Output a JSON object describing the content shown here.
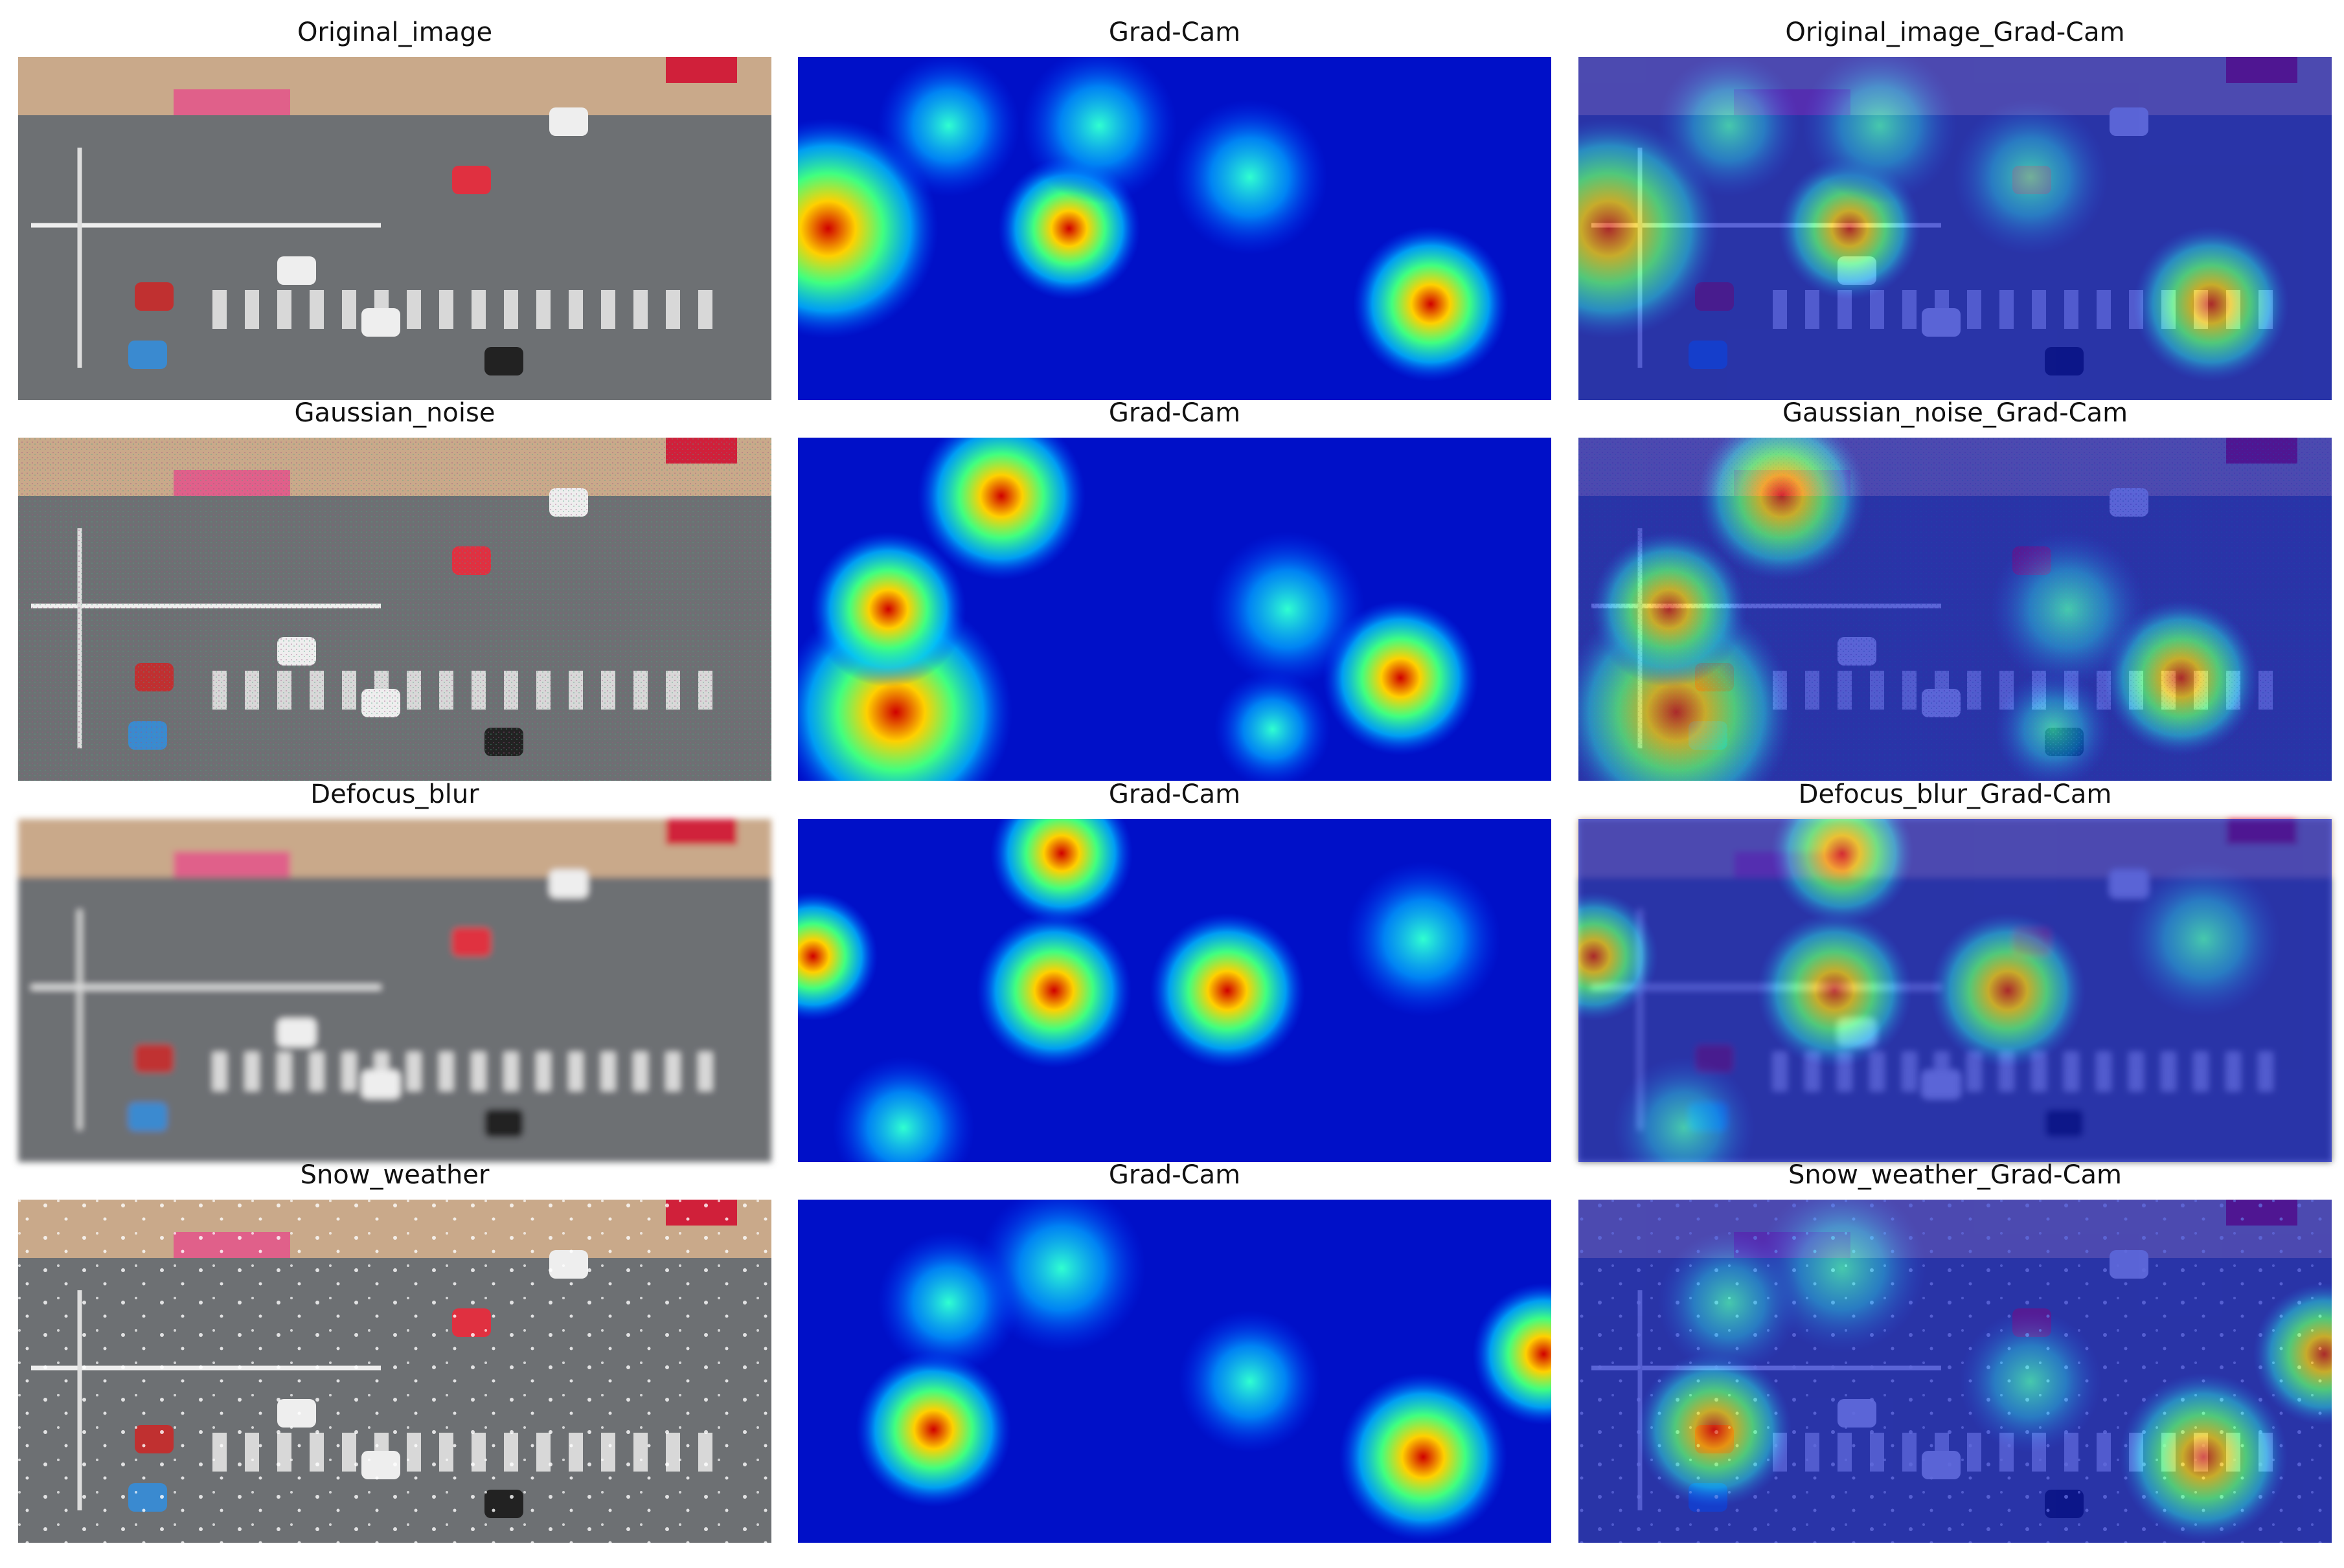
{
  "panels": [
    {
      "title": "Original_image"
    },
    {
      "title": "Grad-Cam"
    },
    {
      "title": "Original_image_Grad-Cam"
    },
    {
      "title": "Gaussian_noise"
    },
    {
      "title": "Grad-Cam"
    },
    {
      "title": "Gaussian_noise_Grad-Cam"
    },
    {
      "title": "Defocus_blur"
    },
    {
      "title": "Grad-Cam"
    },
    {
      "title": "Defocus_blur_Grad-Cam"
    },
    {
      "title": "Snow_weather"
    },
    {
      "title": "Grad-Cam"
    },
    {
      "title": "Snow_weather_Grad-Cam"
    }
  ]
}
